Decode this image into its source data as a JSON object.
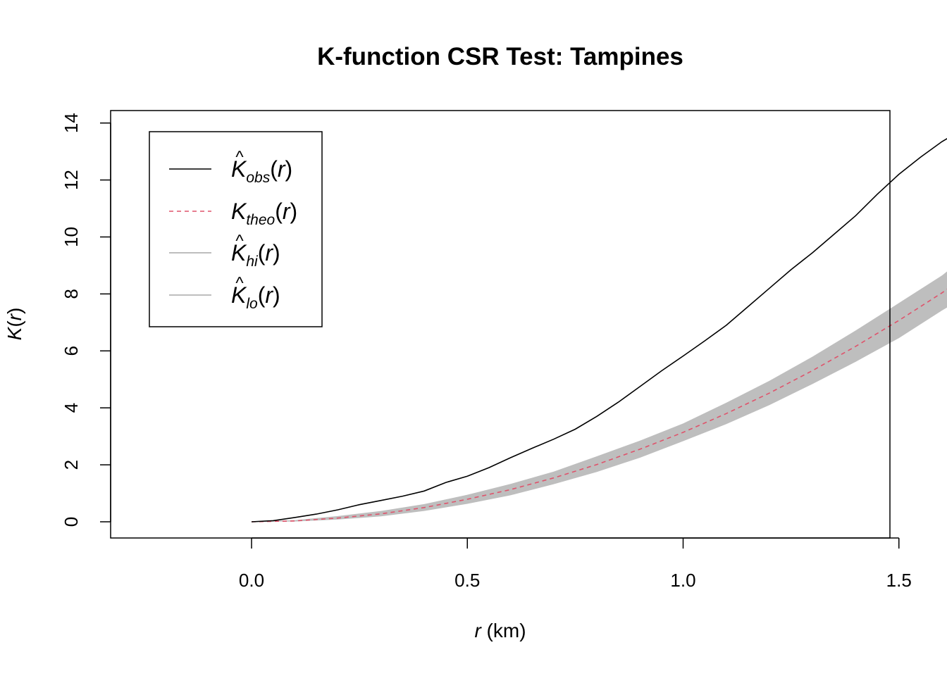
{
  "chart_data": {
    "type": "line",
    "title": "K-function CSR Test: Tampines",
    "xlabel": {
      "italic": "r",
      "rest": " (km)"
    },
    "ylabel": {
      "main": "K",
      "paren_open": "(",
      "arg": "r",
      "paren_close": ")"
    },
    "xlim": [
      -0.14,
      3.47
    ],
    "ylim": [
      -0.55,
      14.45
    ],
    "x_ticks": [
      0.0,
      0.5,
      1.0,
      1.5
    ],
    "x_tick_labels": [
      "0.0",
      "0.5",
      "1.0",
      "1.5"
    ],
    "y_ticks": [
      0,
      2,
      4,
      6,
      8,
      10,
      12,
      14
    ],
    "y_tick_labels": [
      "0",
      "2",
      "4",
      "6",
      "8",
      "10",
      "12",
      "14"
    ],
    "grid": false,
    "legend_position": "top-left",
    "series": [
      {
        "name": "obs",
        "legend": {
          "main": "K",
          "sub": "obs",
          "arg": "r",
          "hat": true
        },
        "style": "solid",
        "color": "#000000",
        "x": [
          0.0,
          0.05,
          0.1,
          0.15,
          0.2,
          0.25,
          0.3,
          0.35,
          0.4,
          0.45,
          0.5,
          0.55,
          0.6,
          0.65,
          0.7,
          0.75,
          0.8,
          0.85,
          0.9,
          0.95,
          1.0,
          1.05,
          1.1,
          1.15,
          1.2,
          1.25,
          1.3,
          1.35,
          1.4,
          1.45,
          1.5,
          1.55,
          1.6,
          1.66
        ],
        "y": [
          0.0,
          0.04,
          0.15,
          0.27,
          0.42,
          0.6,
          0.75,
          0.9,
          1.08,
          1.38,
          1.6,
          1.9,
          2.25,
          2.58,
          2.9,
          3.25,
          3.7,
          4.2,
          4.75,
          5.3,
          5.82,
          6.35,
          6.9,
          7.55,
          8.2,
          8.85,
          9.45,
          10.1,
          10.75,
          11.5,
          12.2,
          12.8,
          13.35,
          13.88
        ]
      },
      {
        "name": "theo",
        "legend": {
          "main": "K",
          "sub": "theo",
          "arg": "r",
          "hat": false
        },
        "style": "dashed",
        "color": "#DF536B",
        "x": [
          0.0,
          0.1,
          0.2,
          0.3,
          0.4,
          0.5,
          0.6,
          0.7,
          0.8,
          0.9,
          1.0,
          1.1,
          1.2,
          1.3,
          1.4,
          1.5,
          1.6,
          1.66
        ],
        "y": [
          0.0,
          0.03,
          0.13,
          0.28,
          0.5,
          0.79,
          1.13,
          1.54,
          2.01,
          2.55,
          3.14,
          3.8,
          4.52,
          5.31,
          6.16,
          7.07,
          8.04,
          8.66
        ]
      },
      {
        "name": "hi",
        "legend": {
          "main": "K",
          "sub": "hi",
          "arg": "r",
          "hat": true
        },
        "style": "band-upper",
        "color": "#BEBEBE",
        "x": [
          0.0,
          0.1,
          0.2,
          0.3,
          0.4,
          0.5,
          0.6,
          0.7,
          0.8,
          0.9,
          1.0,
          1.1,
          1.2,
          1.3,
          1.4,
          1.5,
          1.6,
          1.66
        ],
        "y": [
          0.0,
          0.06,
          0.2,
          0.38,
          0.62,
          0.95,
          1.33,
          1.76,
          2.3,
          2.85,
          3.45,
          4.18,
          4.95,
          5.8,
          6.72,
          7.68,
          8.65,
          9.38
        ]
      },
      {
        "name": "lo",
        "legend": {
          "main": "K",
          "sub": "lo",
          "arg": "r",
          "hat": true
        },
        "style": "band-lower",
        "color": "#BEBEBE",
        "x": [
          0.0,
          0.1,
          0.2,
          0.3,
          0.4,
          0.5,
          0.6,
          0.7,
          0.8,
          0.9,
          1.0,
          1.1,
          1.2,
          1.3,
          1.4,
          1.5,
          1.6,
          1.66
        ],
        "y": [
          0.0,
          0.01,
          0.08,
          0.19,
          0.38,
          0.63,
          0.93,
          1.32,
          1.75,
          2.25,
          2.83,
          3.43,
          4.1,
          4.84,
          5.62,
          6.45,
          7.42,
          7.95
        ]
      }
    ]
  }
}
